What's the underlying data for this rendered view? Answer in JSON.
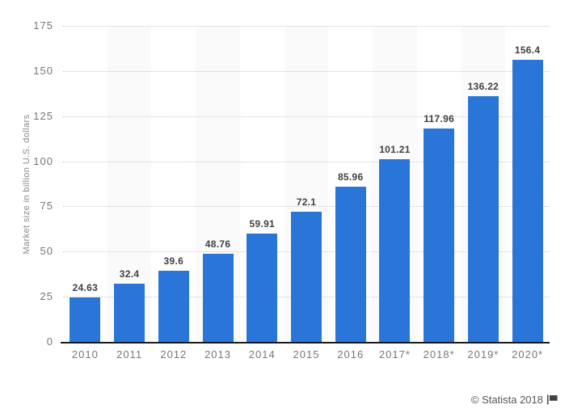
{
  "chart_data": {
    "type": "bar",
    "categories": [
      "2010",
      "2011",
      "2012",
      "2013",
      "2014",
      "2015",
      "2016",
      "2017*",
      "2018*",
      "2019*",
      "2020*"
    ],
    "values": [
      24.63,
      32.4,
      39.6,
      48.76,
      59.91,
      72.1,
      85.96,
      101.21,
      117.96,
      136.22,
      156.4
    ],
    "value_labels": [
      "24.63",
      "32.4",
      "39.6",
      "48.76",
      "59.91",
      "72.1",
      "85.96",
      "101.21",
      "117.96",
      "136.22",
      "156.4"
    ],
    "title": "",
    "xlabel": "",
    "ylabel": "Market size in billion U.S. dollars",
    "ylim": [
      0,
      175
    ],
    "yticks": [
      0,
      25,
      50,
      75,
      100,
      125,
      150,
      175
    ],
    "grid": "horizontal-dotted",
    "legend": "none",
    "column_stripes": "alternating"
  },
  "footer": {
    "copyright": "© Statista 2018"
  },
  "icons": {
    "footer_flag": "flag-icon"
  },
  "colors": {
    "bar": "#2a76d8",
    "stripe": "#fafafa",
    "gridline": "#c8c8c8",
    "axis_line": "#1a1a1a",
    "value_label": "#404040",
    "tick_label": "#767676",
    "y_axis_title": "#8a8a8a",
    "footer_text": "#555555",
    "background": "#ffffff"
  }
}
